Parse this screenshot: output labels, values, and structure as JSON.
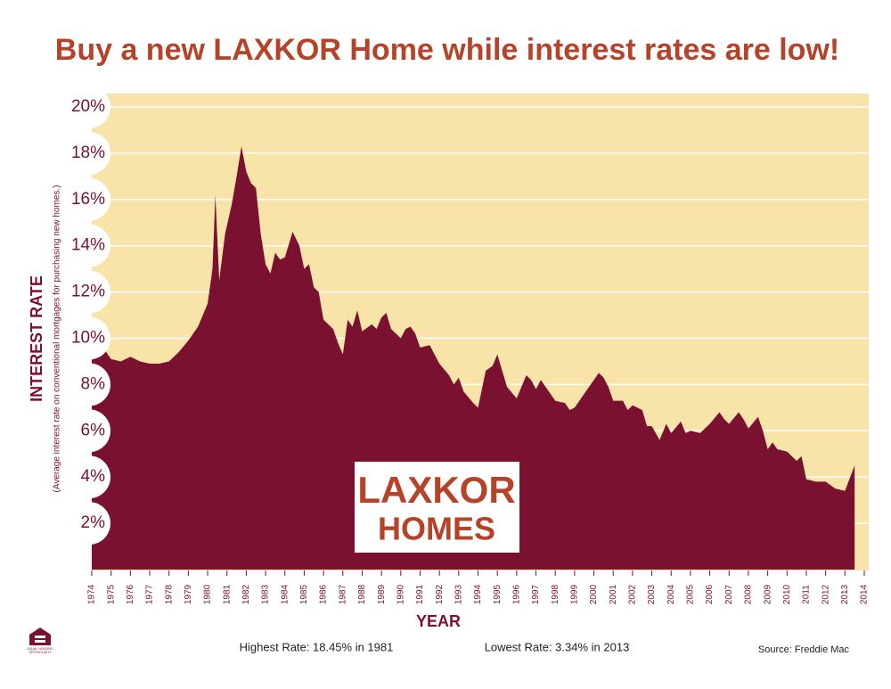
{
  "chart_data": {
    "type": "area",
    "title": "Buy a new LAXKOR Home while interest rates are low!",
    "y_label": "INTEREST RATE",
    "y_sublabel": "(Average interest rate on conventional mortgages for purchasing new homes.)",
    "x_label": "YEAR",
    "logo": [
      "LAXKOR",
      "HOMES"
    ],
    "annotations": [
      "Highest Rate: 18.45% in 1981",
      "Lowest Rate: 3.34% in 2013",
      "Source: Freddie Mac"
    ],
    "badge": [
      "EQUAL HOUSING",
      "OPPORTUNITY"
    ],
    "color": "#7a1131",
    "background": "#f8e4a8",
    "grid": true,
    "xlim": [
      1974,
      2014
    ],
    "xticks": [
      1974,
      1975,
      1976,
      1977,
      1978,
      1979,
      1980,
      1981,
      1982,
      1983,
      1984,
      1985,
      1986,
      1987,
      1988,
      1989,
      1990,
      1991,
      1992,
      1993,
      1994,
      1995,
      1996,
      1997,
      1998,
      1999,
      2000,
      2001,
      2002,
      2003,
      2004,
      2005,
      2006,
      2007,
      2008,
      2009,
      2010,
      2011,
      2012,
      2013,
      2014
    ],
    "ylim": [
      0,
      20
    ],
    "yticks": [
      {
        "value": 2,
        "label": "2%"
      },
      {
        "value": 4,
        "label": "4%"
      },
      {
        "value": 6,
        "label": "6%"
      },
      {
        "value": 8,
        "label": "8%"
      },
      {
        "value": 10,
        "label": "10%"
      },
      {
        "value": 12,
        "label": "12%"
      },
      {
        "value": 14,
        "label": "14%"
      },
      {
        "value": 16,
        "label": "16%"
      },
      {
        "value": 18,
        "label": "18%"
      },
      {
        "value": 20,
        "label": "20%"
      }
    ],
    "x": [
      1974,
      1974.5,
      1975,
      1975.5,
      1976,
      1976.5,
      1977,
      1977.5,
      1978,
      1978.5,
      1979,
      1979.5,
      1980,
      1980.25,
      1980.4,
      1980.6,
      1980.9,
      1981.25,
      1981.5,
      1981.75,
      1982,
      1982.25,
      1982.5,
      1982.75,
      1983,
      1983.25,
      1983.5,
      1983.75,
      1984,
      1984.4,
      1984.75,
      1985,
      1985.25,
      1985.5,
      1985.75,
      1986,
      1986.5,
      1986.75,
      1987,
      1987.25,
      1987.5,
      1987.75,
      1988,
      1988.5,
      1988.75,
      1989,
      1989.25,
      1989.5,
      1990,
      1990.25,
      1990.5,
      1990.75,
      1991,
      1991.5,
      1992,
      1992.5,
      1992.75,
      1993,
      1993.25,
      1993.75,
      1994,
      1994.4,
      1994.75,
      1995,
      1995.25,
      1995.5,
      1996,
      1996.25,
      1996.5,
      1996.75,
      1997,
      1997.25,
      1997.75,
      1998,
      1998.5,
      1998.75,
      1999,
      1999.5,
      2000,
      2000.25,
      2000.5,
      2000.75,
      2001,
      2001.5,
      2001.75,
      2002,
      2002.5,
      2002.75,
      2003,
      2003.4,
      2003.75,
      2004,
      2004.5,
      2004.75,
      2005,
      2005.5,
      2006,
      2006.5,
      2006.75,
      2007,
      2007.5,
      2007.75,
      2008,
      2008.5,
      2008.75,
      2009,
      2009.25,
      2009.5,
      2010,
      2010.5,
      2010.75,
      2011,
      2011.5,
      2012,
      2012.5,
      2013,
      2013.5
    ],
    "values": [
      9.2,
      9.7,
      9.1,
      9.0,
      9.2,
      9.0,
      8.9,
      8.9,
      9.0,
      9.4,
      9.9,
      10.5,
      11.5,
      13.0,
      16.2,
      12.5,
      14.5,
      15.8,
      17.0,
      18.3,
      17.2,
      16.7,
      16.5,
      14.5,
      13.2,
      12.8,
      13.7,
      13.4,
      13.5,
      14.6,
      14.0,
      13.0,
      13.2,
      12.2,
      12.0,
      10.8,
      10.4,
      9.8,
      9.3,
      10.8,
      10.5,
      11.2,
      10.3,
      10.6,
      10.4,
      10.9,
      11.1,
      10.4,
      10.0,
      10.4,
      10.5,
      10.2,
      9.6,
      9.7,
      8.9,
      8.4,
      8.0,
      8.3,
      7.7,
      7.2,
      7.0,
      8.6,
      8.8,
      9.3,
      8.6,
      7.9,
      7.4,
      7.9,
      8.4,
      8.2,
      7.8,
      8.2,
      7.6,
      7.3,
      7.2,
      6.9,
      7.0,
      7.6,
      8.2,
      8.5,
      8.3,
      7.9,
      7.3,
      7.3,
      6.9,
      7.1,
      6.9,
      6.2,
      6.2,
      5.6,
      6.3,
      5.9,
      6.4,
      5.9,
      6.0,
      5.9,
      6.3,
      6.8,
      6.5,
      6.3,
      6.8,
      6.5,
      6.1,
      6.6,
      6.0,
      5.2,
      5.5,
      5.2,
      5.1,
      4.7,
      4.9,
      3.9,
      3.8,
      3.8,
      3.5,
      3.4,
      4.5
    ]
  }
}
